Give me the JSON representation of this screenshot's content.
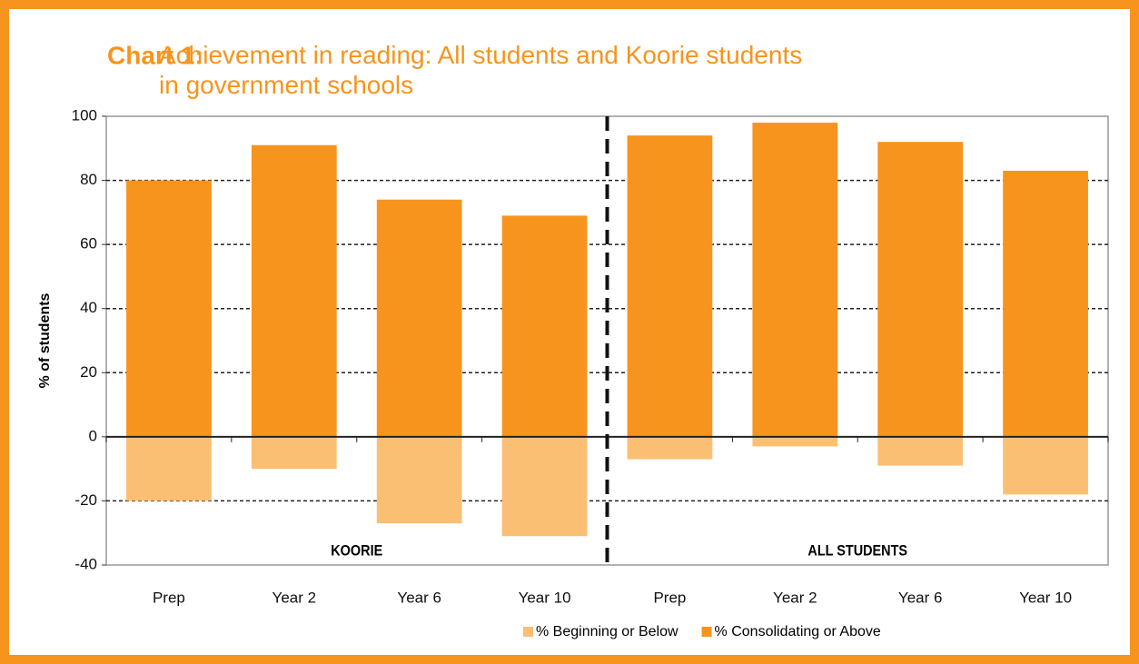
{
  "chart_data": {
    "type": "bar",
    "title_prefix": "Chart 1:",
    "title": "Achievement in reading: All students and Koorie students in government schools",
    "y_label": "% of students",
    "categories": [
      "Prep",
      "Year 2",
      "Year 6",
      "Year 10",
      "Prep",
      "Year 2",
      "Year 6",
      "Year 10"
    ],
    "series": [
      {
        "name": "% Beginning or Below",
        "color": "#fbbf74",
        "values": [
          -20,
          -10,
          -27,
          -31,
          -7,
          -3,
          -9,
          -18
        ]
      },
      {
        "name": "% Consolidating or Above",
        "color": "#f7941d",
        "values": [
          80,
          91,
          74,
          69,
          94,
          98,
          92,
          83
        ]
      }
    ],
    "annotations": [
      "KOORIE",
      "ALL STUDENTS"
    ],
    "ylim": [
      -40,
      100
    ],
    "yticks": [
      -40,
      -20,
      0,
      20,
      40,
      60,
      80,
      100
    ],
    "grid": true,
    "legend": "bottom"
  }
}
